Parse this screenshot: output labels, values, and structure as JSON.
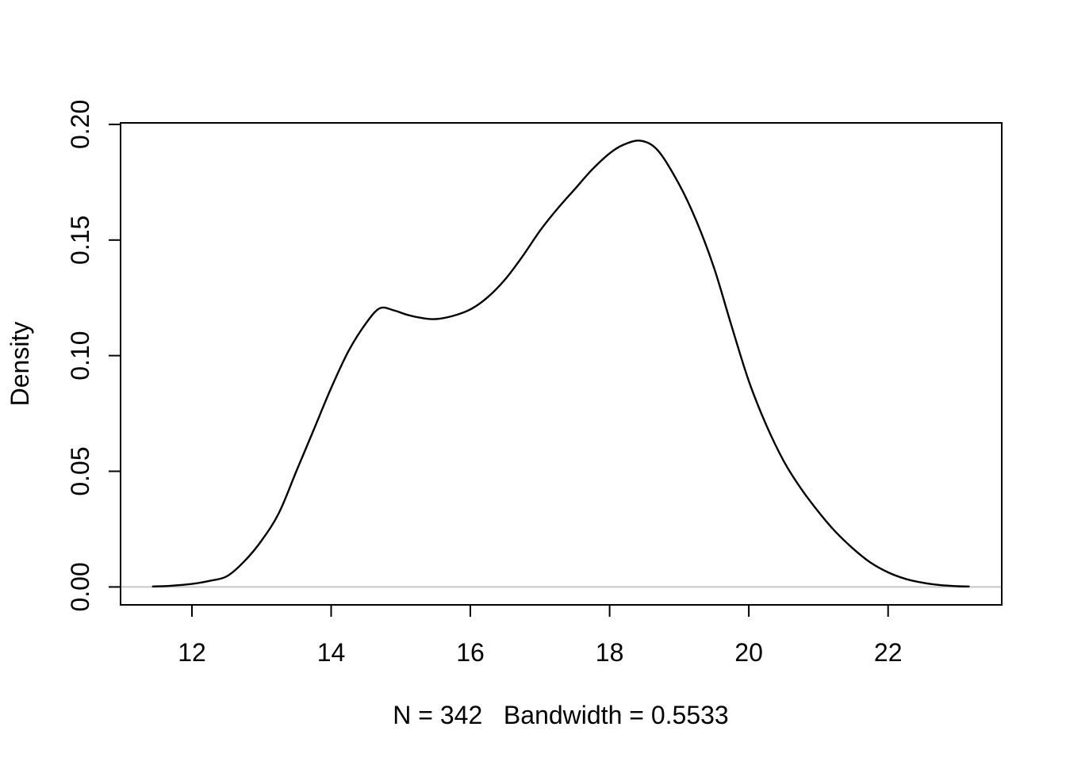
{
  "figure": {
    "background_color": "#ffffff",
    "axis_color": "#000000",
    "curve_color": "#000000",
    "zero_line_color": "#c6c6c6",
    "tick_label_color": "#000000"
  },
  "chart_data": {
    "type": "line",
    "title": "",
    "xlabel": "N = 342   Bandwidth = 0.5533",
    "ylabel": "Density",
    "n": 342,
    "bandwidth": 0.5533,
    "xlim": [
      10.975,
      23.633
    ],
    "ylim": [
      -0.00775,
      0.20065
    ],
    "x_ticks": [
      12,
      14,
      16,
      18,
      20,
      22
    ],
    "x_tick_labels": [
      "12",
      "14",
      "16",
      "18",
      "20",
      "22"
    ],
    "y_ticks": [
      0,
      0.05,
      0.1,
      0.15,
      0.2
    ],
    "y_tick_labels": [
      "0.00",
      "0.05",
      "0.10",
      "0.15",
      "0.20"
    ],
    "grid": false,
    "legend": "none",
    "zero_reference_line": 0,
    "series": [
      {
        "name": "kernel-density",
        "points": [
          [
            11.44,
            0.0002
          ],
          [
            11.7,
            0.0005
          ],
          [
            12.0,
            0.0013
          ],
          [
            12.25,
            0.0026
          ],
          [
            12.5,
            0.0046
          ],
          [
            12.75,
            0.011
          ],
          [
            13.0,
            0.02
          ],
          [
            13.25,
            0.032
          ],
          [
            13.5,
            0.05
          ],
          [
            13.75,
            0.068
          ],
          [
            14.0,
            0.086
          ],
          [
            14.25,
            0.102
          ],
          [
            14.5,
            0.114
          ],
          [
            14.7,
            0.1205
          ],
          [
            14.9,
            0.1196
          ],
          [
            15.1,
            0.1176
          ],
          [
            15.3,
            0.1163
          ],
          [
            15.5,
            0.1158
          ],
          [
            15.75,
            0.1172
          ],
          [
            16.0,
            0.12
          ],
          [
            16.25,
            0.1253
          ],
          [
            16.5,
            0.133
          ],
          [
            16.75,
            0.143
          ],
          [
            17.0,
            0.154
          ],
          [
            17.25,
            0.1635
          ],
          [
            17.5,
            0.172
          ],
          [
            17.75,
            0.1805
          ],
          [
            18.0,
            0.1875
          ],
          [
            18.2,
            0.1912
          ],
          [
            18.45,
            0.1929
          ],
          [
            18.7,
            0.1885
          ],
          [
            19.0,
            0.174
          ],
          [
            19.25,
            0.158
          ],
          [
            19.5,
            0.138
          ],
          [
            19.75,
            0.113
          ],
          [
            20.0,
            0.089
          ],
          [
            20.25,
            0.07
          ],
          [
            20.5,
            0.0545
          ],
          [
            20.75,
            0.0425
          ],
          [
            21.0,
            0.0325
          ],
          [
            21.25,
            0.0237
          ],
          [
            21.5,
            0.0165
          ],
          [
            21.75,
            0.0105
          ],
          [
            22.0,
            0.0063
          ],
          [
            22.25,
            0.0035
          ],
          [
            22.5,
            0.0018
          ],
          [
            22.75,
            0.0008
          ],
          [
            23.0,
            0.0003
          ],
          [
            23.16,
            0.0002
          ]
        ]
      }
    ]
  }
}
